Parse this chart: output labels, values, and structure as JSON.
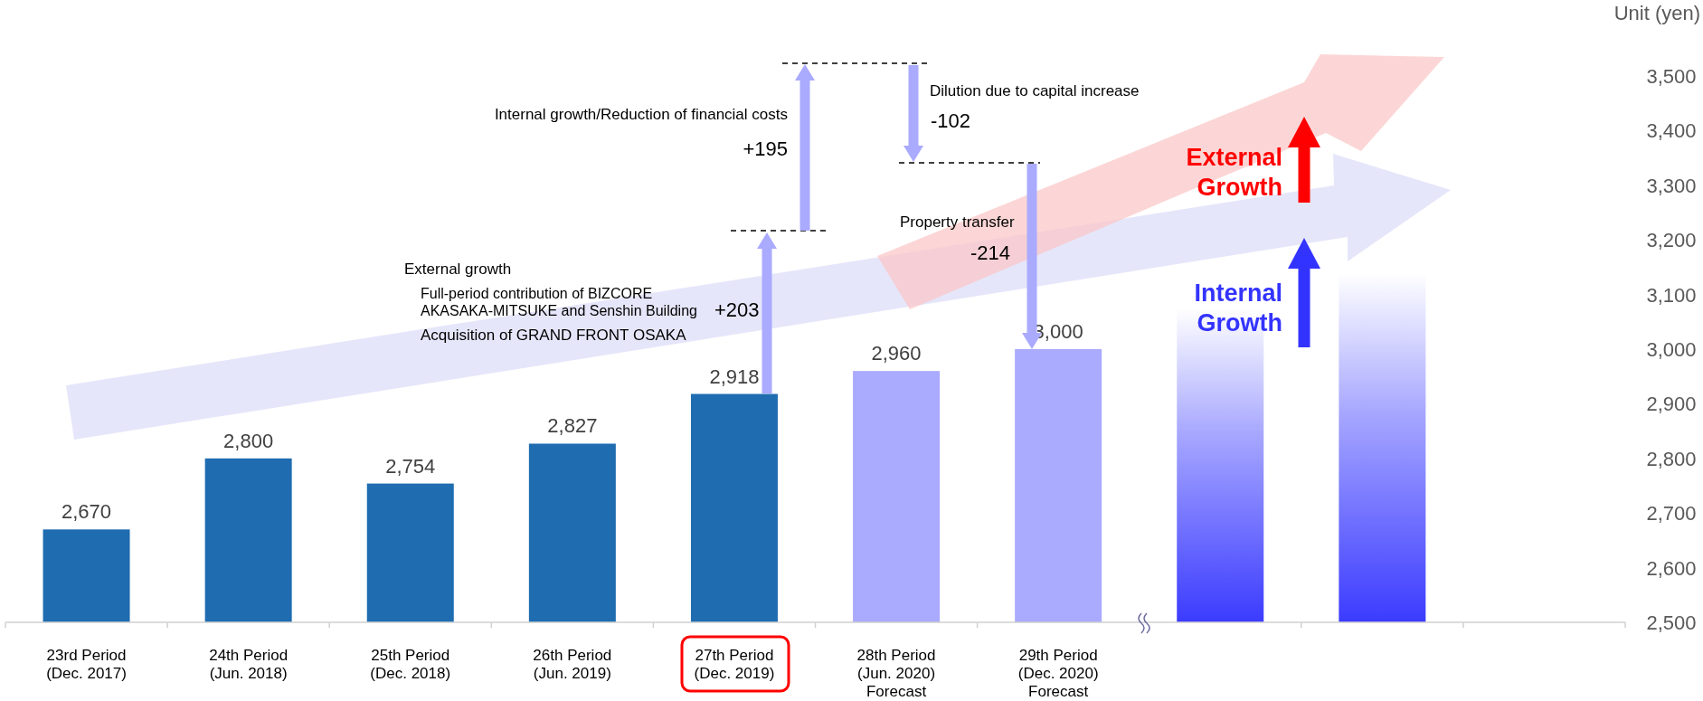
{
  "chart_data": {
    "type": "bar",
    "ylabel": "Unit (yen)",
    "categories": [
      "23rd Period\n(Dec. 2017)",
      "24th Period\n(Jun. 2018)",
      "25th Period\n(Dec. 2018)",
      "26th Period\n(Jun. 2019)",
      "27th Period\n(Dec. 2019)",
      "28th Period\n(Jun. 2020)\nForecast",
      "29th Period\n(Dec. 2020)\nForecast",
      null,
      null,
      null
    ],
    "values": [
      2670,
      2800,
      2754,
      2827,
      2918,
      2960,
      3000,
      3075,
      3140,
      null
    ],
    "colors": [
      "#1f6cb0",
      "#1f6cb0",
      "#1f6cb0",
      "#1f6cb0",
      "#1f6cb0",
      "#aaaaff",
      "#aaaaff",
      "#3b3bff",
      "#3b3bff",
      "#3b3bff"
    ],
    "value_labels": [
      "2,670",
      "2,800",
      "2,754",
      "2,827",
      "2,918",
      "2,960",
      "3,000",
      null,
      null,
      null
    ],
    "ylim": [
      2500,
      3500
    ],
    "yticks": [
      {
        "value": 2500,
        "label": "2,500"
      },
      {
        "value": 2600,
        "label": "2,600"
      },
      {
        "value": 2700,
        "label": "2,700"
      },
      {
        "value": 2800,
        "label": "2,800"
      },
      {
        "value": 2900,
        "label": "2,900"
      },
      {
        "value": 3000,
        "label": "3,000"
      },
      {
        "value": 3100,
        "label": "3,100"
      },
      {
        "value": 3200,
        "label": "3,200"
      },
      {
        "value": 3300,
        "label": "3,300"
      },
      {
        "value": 3400,
        "label": "3,400"
      },
      {
        "value": 3500,
        "label": "3,500"
      }
    ],
    "annotations": [
      "External growth",
      "Full-period contribution of BIZCORE",
      "AKASAKA-MITSUKE and Senshin Building",
      "Acquisition of GRAND FRONT OSAKA",
      "+203",
      "Internal growth/Reduction of financial costs",
      "+195",
      "Dilution due to capital increase",
      "-102",
      "Property transfer",
      "-214",
      "External",
      "Growth",
      "Internal",
      "Growth"
    ]
  }
}
